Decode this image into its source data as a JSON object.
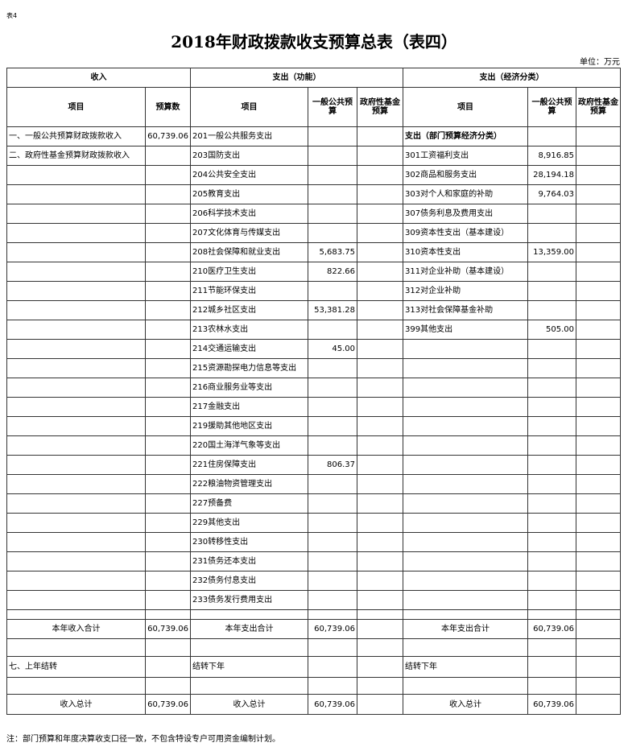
{
  "header": {
    "label": "表4",
    "title": "2018年财政拨款收支预算总表（表四）",
    "unit": "单位：万元"
  },
  "table": {
    "groups": [
      "收入",
      "支出（功能）",
      "支出（经济分类）"
    ],
    "columns": [
      "项目",
      "预算数",
      "项目",
      "一般公共预算",
      "政府性基金预算",
      "项目",
      "一般公共预算",
      "政府性基金预算"
    ],
    "rows": [
      [
        "一、一般公共预算财政拨款收入",
        "60,739.06",
        "201一般公共服务支出",
        null,
        null,
        "支出（部门预算经济分类）",
        null,
        null
      ],
      [
        "二、政府性基金预算财政拨款收入",
        null,
        "203国防支出",
        null,
        null,
        "301工资福利支出",
        "8,916.85",
        null
      ],
      [
        null,
        null,
        "204公共安全支出",
        null,
        null,
        "302商品和服务支出",
        "28,194.18",
        null
      ],
      [
        null,
        null,
        "205教育支出",
        null,
        null,
        "303对个人和家庭的补助",
        "9,764.03",
        null
      ],
      [
        null,
        null,
        "206科学技术支出",
        null,
        null,
        "307债务利息及费用支出",
        null,
        null
      ],
      [
        null,
        null,
        "207文化体育与传媒支出",
        null,
        null,
        "309资本性支出（基本建设）",
        null,
        null
      ],
      [
        null,
        null,
        "208社会保障和就业支出",
        "5,683.75",
        null,
        "310资本性支出",
        "13,359.00",
        null
      ],
      [
        null,
        null,
        "210医疗卫生支出",
        "822.66",
        null,
        "311对企业补助（基本建设）",
        null,
        null
      ],
      [
        null,
        null,
        "211节能环保支出",
        null,
        null,
        "312对企业补助",
        null,
        null
      ],
      [
        null,
        null,
        "212城乡社区支出",
        "53,381.28",
        null,
        "313对社会保障基金补助",
        null,
        null
      ],
      [
        null,
        null,
        "213农林水支出",
        null,
        null,
        "399其他支出",
        "505.00",
        null
      ],
      [
        null,
        null,
        "214交通运输支出",
        "45.00",
        null,
        null,
        null,
        null
      ],
      [
        null,
        null,
        "215资源勘探电力信息等支出",
        null,
        null,
        null,
        null,
        null
      ],
      [
        null,
        null,
        "216商业服务业等支出",
        null,
        null,
        null,
        null,
        null
      ],
      [
        null,
        null,
        "217金融支出",
        null,
        null,
        null,
        null,
        null
      ],
      [
        null,
        null,
        "219援助其他地区支出",
        null,
        null,
        null,
        null,
        null
      ],
      [
        null,
        null,
        "220国土海洋气象等支出",
        null,
        null,
        null,
        null,
        null
      ],
      [
        null,
        null,
        "221住房保障支出",
        "806.37",
        null,
        null,
        null,
        null
      ],
      [
        null,
        null,
        "222粮油物资管理支出",
        null,
        null,
        null,
        null,
        null
      ],
      [
        null,
        null,
        "227预备费",
        null,
        null,
        null,
        null,
        null
      ],
      [
        null,
        null,
        "229其他支出",
        null,
        null,
        null,
        null,
        null
      ],
      [
        null,
        null,
        "230转移性支出",
        null,
        null,
        null,
        null,
        null
      ],
      [
        null,
        null,
        "231债务还本支出",
        null,
        null,
        null,
        null,
        null
      ],
      [
        null,
        null,
        "232债务付息支出",
        null,
        null,
        null,
        null,
        null
      ],
      [
        null,
        null,
        "233债务发行费用支出",
        null,
        null,
        null,
        null,
        null
      ],
      [
        null,
        null,
        null,
        null,
        null,
        null,
        null,
        null
      ],
      [
        "本年收入合计",
        "60,739.06",
        "本年支出合计",
        "60,739.06",
        null,
        "本年支出合计",
        "60,739.06",
        null
      ],
      [
        null,
        null,
        null,
        null,
        null,
        null,
        null,
        null
      ],
      [
        "七、上年结转",
        null,
        "结转下年",
        null,
        null,
        "结转下年",
        null,
        null
      ],
      [
        null,
        null,
        null,
        null,
        null,
        null,
        null,
        null
      ],
      [
        "收入总计",
        "60,739.06",
        "收入总计",
        "60,739.06",
        null,
        "收入总计",
        "60,739.06",
        null
      ]
    ]
  },
  "footer": {
    "note": "注：部门预算和年度决算收支口径一致，不包含特设专户可用资金编制计划。"
  }
}
